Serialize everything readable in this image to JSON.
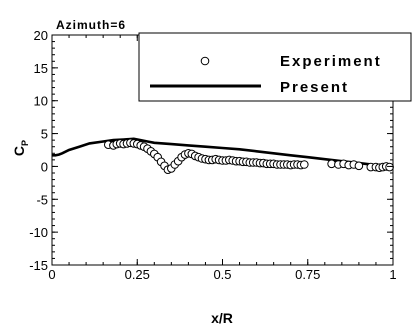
{
  "chart_data": {
    "type": "line",
    "title": "Azimuth=6",
    "xlabel": "x/R",
    "ylabel": "C",
    "ylabel_sub": "P",
    "xlim": [
      0,
      1
    ],
    "ylim": [
      -15,
      20
    ],
    "xticks": [
      0,
      0.25,
      0.5,
      0.75,
      1
    ],
    "xtick_labels": [
      "0",
      "0.25",
      "0.5",
      "0.75",
      "1"
    ],
    "yticks": [
      -15,
      -10,
      -5,
      0,
      5,
      10,
      15,
      20
    ],
    "ytick_labels": [
      "-15",
      "-10",
      "-5",
      "0",
      "5",
      "10",
      "15",
      "20"
    ],
    "grid": false,
    "legend_position": "top-right",
    "series": [
      {
        "name": "Experiment",
        "kind": "scatter",
        "marker": "open-circle",
        "x": [
          0.165,
          0.18,
          0.19,
          0.2,
          0.21,
          0.22,
          0.23,
          0.24,
          0.25,
          0.26,
          0.27,
          0.28,
          0.29,
          0.3,
          0.31,
          0.32,
          0.33,
          0.34,
          0.35,
          0.36,
          0.37,
          0.38,
          0.39,
          0.4,
          0.41,
          0.42,
          0.43,
          0.44,
          0.45,
          0.46,
          0.47,
          0.48,
          0.49,
          0.5,
          0.51,
          0.52,
          0.53,
          0.54,
          0.55,
          0.56,
          0.57,
          0.58,
          0.59,
          0.6,
          0.61,
          0.62,
          0.63,
          0.64,
          0.65,
          0.66,
          0.67,
          0.68,
          0.69,
          0.7,
          0.71,
          0.72,
          0.73,
          0.74,
          0.82,
          0.84,
          0.855,
          0.87,
          0.885,
          0.9,
          0.935,
          0.95,
          0.96,
          0.97,
          0.98,
          0.99
        ],
        "y": [
          3.3,
          3.2,
          3.4,
          3.5,
          3.4,
          3.5,
          3.6,
          3.5,
          3.4,
          3.2,
          3.0,
          2.7,
          2.3,
          1.9,
          1.4,
          0.7,
          0.1,
          -0.5,
          -0.3,
          0.3,
          0.8,
          1.4,
          1.8,
          2.0,
          1.9,
          1.6,
          1.4,
          1.2,
          1.1,
          1.0,
          1.0,
          1.1,
          1.0,
          0.9,
          0.9,
          1.0,
          0.9,
          0.8,
          0.8,
          0.7,
          0.7,
          0.6,
          0.6,
          0.6,
          0.5,
          0.5,
          0.4,
          0.4,
          0.4,
          0.3,
          0.3,
          0.3,
          0.3,
          0.2,
          0.3,
          0.3,
          0.2,
          0.3,
          0.4,
          0.3,
          0.4,
          0.2,
          0.3,
          0.1,
          -0.1,
          -0.1,
          -0.2,
          -0.1,
          0.0,
          -0.1
        ]
      },
      {
        "name": "Present",
        "kind": "line",
        "x": [
          0.0,
          0.01,
          0.02,
          0.03,
          0.05,
          0.08,
          0.11,
          0.15,
          0.18,
          0.21,
          0.24,
          0.26,
          0.28,
          0.3,
          0.35,
          0.4,
          0.45,
          0.5,
          0.55,
          0.6,
          0.65,
          0.7,
          0.75,
          0.8,
          0.85,
          0.9,
          0.95,
          1.0
        ],
        "y": [
          1.7,
          1.7,
          1.8,
          2.0,
          2.5,
          3.0,
          3.5,
          3.8,
          4.0,
          4.1,
          4.2,
          4.0,
          3.8,
          3.6,
          3.4,
          3.2,
          3.0,
          2.8,
          2.6,
          2.3,
          2.0,
          1.7,
          1.4,
          1.1,
          0.8,
          0.5,
          0.2,
          0.0
        ]
      }
    ]
  }
}
